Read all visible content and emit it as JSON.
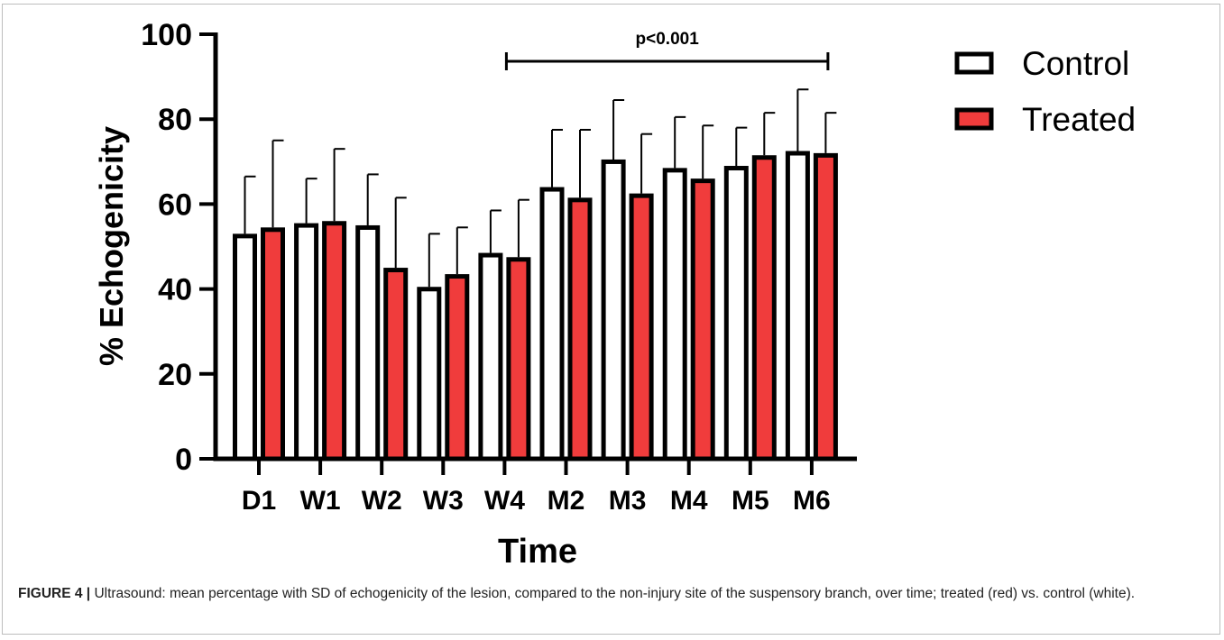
{
  "chart_data": {
    "type": "bar",
    "categories": [
      "D1",
      "W1",
      "W2",
      "W3",
      "W4",
      "M2",
      "M3",
      "M4",
      "M5",
      "M6"
    ],
    "series": [
      {
        "name": "Control",
        "values": [
          53,
          55.5,
          55,
          40.5,
          48.5,
          64,
          70.5,
          68.5,
          69,
          72.5
        ],
        "sd": [
          13.5,
          10.5,
          12,
          12.5,
          10,
          13.5,
          14,
          12,
          9,
          14.5
        ]
      },
      {
        "name": "Treated",
        "values": [
          54.5,
          56,
          45,
          43.5,
          47.5,
          61.5,
          62.5,
          66,
          71.5,
          72
        ],
        "sd": [
          20.5,
          17,
          16.5,
          11,
          13.5,
          16,
          14,
          12.5,
          10,
          9.5
        ]
      }
    ],
    "xlabel": "Time",
    "ylabel": "% Echogenicity",
    "ylim": [
      0,
      100
    ],
    "yticks": [
      "0",
      "20",
      "40",
      "60",
      "80",
      "100"
    ],
    "grid": false,
    "legend_position": "top-right",
    "annotation": {
      "text": "p<0.001",
      "from": "W4",
      "to": "M6"
    },
    "colors": {
      "Control": "#ffffff",
      "Treated": "#f03c3c",
      "outline": "#000000"
    }
  },
  "caption": {
    "label": "FIGURE 4 |",
    "text": " Ultrasound: mean percentage with SD of echogenicity of the lesion, compared to the non-injury site of the suspensory branch, over time; treated (red) vs. control (white)."
  }
}
